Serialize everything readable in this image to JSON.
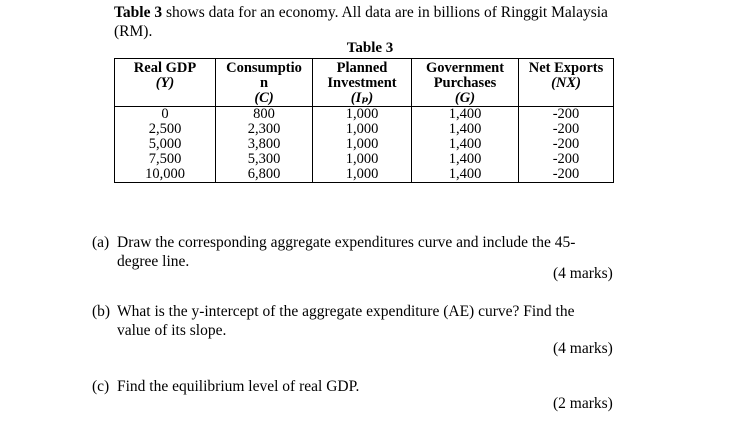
{
  "intro": {
    "table_ref": "Table 3",
    "text": " shows data for an economy. All data are in billions of Ringgit Malaysia (RM)."
  },
  "table": {
    "caption": "Table 3",
    "headers": [
      [
        "Real GDP",
        "(Y)",
        ""
      ],
      [
        "Consumptio",
        "n",
        "(C)"
      ],
      [
        "Planned",
        "Investment",
        "(Iₚ)"
      ],
      [
        "Government",
        "Purchases",
        "(G)"
      ],
      [
        "Net Exports",
        "(NX)",
        ""
      ]
    ],
    "rows": [
      [
        "0",
        "800",
        "1,000",
        "1,400",
        "-200"
      ],
      [
        "2,500",
        "2,300",
        "1,000",
        "1,400",
        "-200"
      ],
      [
        "5,000",
        "3,800",
        "1,000",
        "1,400",
        "-200"
      ],
      [
        "7,500",
        "5,300",
        "1,000",
        "1,400",
        "-200"
      ],
      [
        "10,000",
        "6,800",
        "1,000",
        "1,400",
        "-200"
      ]
    ]
  },
  "questions": [
    {
      "label": "(a)",
      "text": "Draw the corresponding aggregate expenditures curve and include the 45-",
      "text2": "degree line.",
      "marks": "(4 marks)"
    },
    {
      "label": "(b)",
      "text": "What is the y-intercept of the aggregate expenditure (AE) curve? Find the",
      "text2": "value of its slope.",
      "marks": "(4 marks)"
    },
    {
      "label": "(c)",
      "text": "Find the equilibrium level of real GDP.",
      "text2": "",
      "marks": "(2 marks)"
    }
  ]
}
